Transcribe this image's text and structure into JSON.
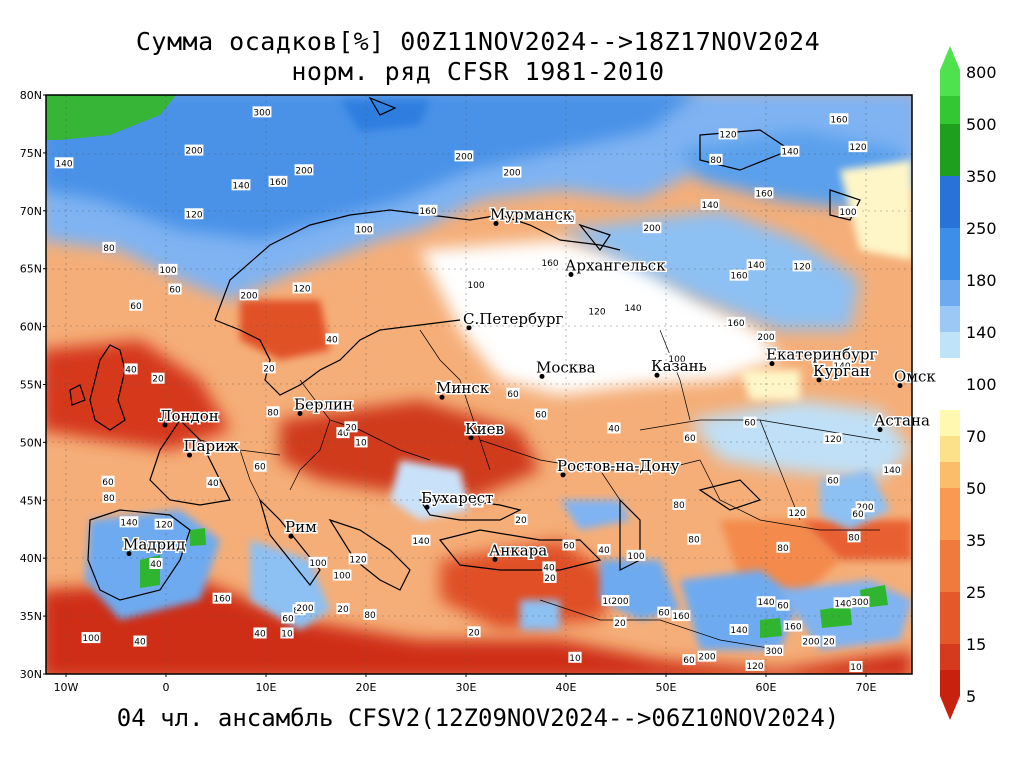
{
  "title_line1": "Сумма осадков[%] 00Z11NOV2024-->18Z17NOV2024",
  "title_line2": "норм. ряд CFSR 1981-2010",
  "footer": "04 чл. ансамбль CFSV2(12Z09NOV2024-->06Z10NOV2024)",
  "lat_labels": [
    "80N",
    "75N",
    "70N",
    "65N",
    "60N",
    "55N",
    "50N",
    "45N",
    "40N",
    "35N",
    "30N"
  ],
  "lon_labels": [
    "10W",
    "0",
    "10E",
    "20E",
    "30E",
    "40E",
    "50E",
    "60E",
    "70E"
  ],
  "colorbar": {
    "labels": [
      "800",
      "500",
      "350",
      "250",
      "180",
      "140",
      "100",
      "70",
      "50",
      "35",
      "25",
      "15",
      "5"
    ],
    "colors": [
      "#4fe24f",
      "#33c833",
      "#1ea01e",
      "#2873d8",
      "#3d8ee8",
      "#6eaaf0",
      "#9bc8f5",
      "#bfe3f7",
      "#fff8b0",
      "#fce08a",
      "#fcbd6a",
      "#f99a50",
      "#f07a3e",
      "#e4582a",
      "#d63a1e",
      "#c8220f"
    ]
  },
  "map": {
    "cities": [
      {
        "name": "Мурманск",
        "lon": 33,
        "lat": 68.9
      },
      {
        "name": "Архангельск",
        "lon": 40.5,
        "lat": 64.5
      },
      {
        "name": "С.Петербург",
        "lon": 30.3,
        "lat": 59.9
      },
      {
        "name": "Москва",
        "lon": 37.6,
        "lat": 55.7
      },
      {
        "name": "Казань",
        "lon": 49.1,
        "lat": 55.8
      },
      {
        "name": "Екатеринбург",
        "lon": 60.6,
        "lat": 56.8
      },
      {
        "name": "Курган",
        "lon": 65.3,
        "lat": 55.4
      },
      {
        "name": "Омск",
        "lon": 73.4,
        "lat": 54.9
      },
      {
        "name": "Астана",
        "lon": 71.4,
        "lat": 51.1
      },
      {
        "name": "Минск",
        "lon": 27.6,
        "lat": 53.9
      },
      {
        "name": "Киев",
        "lon": 30.5,
        "lat": 50.4
      },
      {
        "name": "Берлин",
        "lon": 13.4,
        "lat": 52.5
      },
      {
        "name": "Лондон",
        "lon": -0.1,
        "lat": 51.5
      },
      {
        "name": "Париж",
        "lon": 2.35,
        "lat": 48.9
      },
      {
        "name": "Ростов-на-Дону",
        "lon": 39.7,
        "lat": 47.2
      },
      {
        "name": "Бухарест",
        "lon": 26.1,
        "lat": 44.4
      },
      {
        "name": "Рим",
        "lon": 12.5,
        "lat": 41.9
      },
      {
        "name": "Мадрид",
        "lon": -3.7,
        "lat": 40.4
      },
      {
        "name": "Анкара",
        "lon": 32.9,
        "lat": 39.9
      }
    ],
    "contour_labels": [
      {
        "t": "300",
        "lon": 9.6,
        "lat": 78.5
      },
      {
        "t": "200",
        "lon": 2.8,
        "lat": 75.2
      },
      {
        "t": "200",
        "lon": 29.8,
        "lat": 74.7
      },
      {
        "t": "200",
        "lon": 34.6,
        "lat": 73.3
      },
      {
        "t": "140",
        "lon": -10.2,
        "lat": 74.1
      },
      {
        "t": "140",
        "lon": 7.5,
        "lat": 72.2
      },
      {
        "t": "160",
        "lon": 11.2,
        "lat": 72.5
      },
      {
        "t": "200",
        "lon": 13.8,
        "lat": 73.5
      },
      {
        "t": "120",
        "lon": 2.8,
        "lat": 69.7
      },
      {
        "t": "100",
        "lon": 0.2,
        "lat": 64.9
      },
      {
        "t": "80",
        "lon": -5.7,
        "lat": 66.8
      },
      {
        "t": "60",
        "lon": 0.9,
        "lat": 63.2
      },
      {
        "t": "60",
        "lon": -3,
        "lat": 61.8
      },
      {
        "t": "200",
        "lon": 8.3,
        "lat": 62.7
      },
      {
        "t": "120",
        "lon": 13.6,
        "lat": 63.3
      },
      {
        "t": "100",
        "lon": 19.8,
        "lat": 68.4
      },
      {
        "t": "160",
        "lon": 26.2,
        "lat": 70
      },
      {
        "t": "140",
        "lon": 40,
        "lat": 69.3
      },
      {
        "t": "160",
        "lon": 38.4,
        "lat": 65.5
      },
      {
        "t": "200",
        "lon": 48.6,
        "lat": 68.5
      },
      {
        "t": "100",
        "lon": 31,
        "lat": 63.6
      },
      {
        "t": "120",
        "lon": 43.1,
        "lat": 61.3
      },
      {
        "t": "140",
        "lon": 46.7,
        "lat": 61.6
      },
      {
        "t": "160",
        "lon": 57,
        "lat": 60.3
      },
      {
        "t": "140",
        "lon": 59,
        "lat": 65.3
      },
      {
        "t": "160",
        "lon": 57.3,
        "lat": 64.4
      },
      {
        "t": "120",
        "lon": 63.6,
        "lat": 65.2
      },
      {
        "t": "160",
        "lon": 59.8,
        "lat": 71.5
      },
      {
        "t": "140",
        "lon": 54.4,
        "lat": 70.5
      },
      {
        "t": "80",
        "lon": 55,
        "lat": 74.4
      },
      {
        "t": "120",
        "lon": 56.2,
        "lat": 76.6
      },
      {
        "t": "160",
        "lon": 67.3,
        "lat": 77.9
      },
      {
        "t": "120",
        "lon": 69.2,
        "lat": 75.5
      },
      {
        "t": "140",
        "lon": 62.4,
        "lat": 75.1
      },
      {
        "t": "100",
        "lon": 68.2,
        "lat": 69.9
      },
      {
        "t": "200",
        "lon": 60,
        "lat": 59.1
      },
      {
        "t": "100",
        "lon": 51.1,
        "lat": 57.2
      },
      {
        "t": "140",
        "lon": 67.6,
        "lat": 56.6
      },
      {
        "t": "40",
        "lon": 16.6,
        "lat": 58.9
      },
      {
        "t": "40",
        "lon": 27.8,
        "lat": 54.7
      },
      {
        "t": "60",
        "lon": 34.7,
        "lat": 54.2
      },
      {
        "t": "80",
        "lon": 17.7,
        "lat": 53.1
      },
      {
        "t": "60",
        "lon": 37.5,
        "lat": 52.4
      },
      {
        "t": "40",
        "lon": 44.8,
        "lat": 51.2
      },
      {
        "t": "60",
        "lon": 58.4,
        "lat": 51.7
      },
      {
        "t": "40",
        "lon": 17.7,
        "lat": 50.8
      },
      {
        "t": "20",
        "lon": 18.5,
        "lat": 51.3
      },
      {
        "t": "10",
        "lon": 19.5,
        "lat": 50
      },
      {
        "t": "20",
        "lon": 10.3,
        "lat": 56.4
      },
      {
        "t": "20",
        "lon": -0.8,
        "lat": 55.5
      },
      {
        "t": "40",
        "lon": -3.5,
        "lat": 56.3
      },
      {
        "t": "80",
        "lon": 10.7,
        "lat": 52.6
      },
      {
        "t": "60",
        "lon": 9.4,
        "lat": 47.9
      },
      {
        "t": "40",
        "lon": 4.7,
        "lat": 46.5
      },
      {
        "t": "60",
        "lon": -5.8,
        "lat": 46.6
      },
      {
        "t": "80",
        "lon": -5.7,
        "lat": 45.2
      },
      {
        "t": "140",
        "lon": -3.7,
        "lat": 43.1
      },
      {
        "t": "120",
        "lon": -0.2,
        "lat": 42.9
      },
      {
        "t": "40",
        "lon": -1,
        "lat": 39.5
      },
      {
        "t": "100",
        "lon": -7.5,
        "lat": 33.1
      },
      {
        "t": "40",
        "lon": -2.6,
        "lat": 32.8
      },
      {
        "t": "40",
        "lon": 9.4,
        "lat": 33.5
      },
      {
        "t": "80",
        "lon": 13.3,
        "lat": 35.5
      },
      {
        "t": "200",
        "lon": 13.9,
        "lat": 35.7
      },
      {
        "t": "20",
        "lon": 17.7,
        "lat": 35.6
      },
      {
        "t": "10",
        "lon": 12.1,
        "lat": 33.5
      },
      {
        "t": "60",
        "lon": 12.2,
        "lat": 34.8
      },
      {
        "t": "160",
        "lon": 5.6,
        "lat": 36.5
      },
      {
        "t": "100",
        "lon": 15.2,
        "lat": 39.6
      },
      {
        "t": "100",
        "lon": 17.6,
        "lat": 38.5
      },
      {
        "t": "120",
        "lon": 19.2,
        "lat": 39.9
      },
      {
        "t": "80",
        "lon": 20.4,
        "lat": 35.1
      },
      {
        "t": "140",
        "lon": 25.5,
        "lat": 41.5
      },
      {
        "t": "20",
        "lon": 30.8,
        "lat": 33.6
      },
      {
        "t": "60",
        "lon": 31.1,
        "lat": 44.8
      },
      {
        "t": "20",
        "lon": 35.5,
        "lat": 43.3
      },
      {
        "t": "60",
        "lon": 40.3,
        "lat": 41.1
      },
      {
        "t": "40",
        "lon": 38.3,
        "lat": 39.2
      },
      {
        "t": "20",
        "lon": 38.4,
        "lat": 38.3
      },
      {
        "t": "100",
        "lon": 44.5,
        "lat": 36.3
      },
      {
        "t": "200",
        "lon": 45.4,
        "lat": 36.3
      },
      {
        "t": "20",
        "lon": 45.4,
        "lat": 34.4
      },
      {
        "t": "100",
        "lon": 47,
        "lat": 40.2
      },
      {
        "t": "40",
        "lon": 43.8,
        "lat": 40.7
      },
      {
        "t": "60",
        "lon": 49.8,
        "lat": 35.3
      },
      {
        "t": "160",
        "lon": 51.5,
        "lat": 35
      },
      {
        "t": "80",
        "lon": 51.3,
        "lat": 44.6
      },
      {
        "t": "60",
        "lon": 52.4,
        "lat": 50.4
      },
      {
        "t": "80",
        "lon": 52.8,
        "lat": 41.6
      },
      {
        "t": "60",
        "lon": 52.3,
        "lat": 31.2
      },
      {
        "t": "200",
        "lon": 54.1,
        "lat": 31.5
      },
      {
        "t": "140",
        "lon": 57.3,
        "lat": 33.8
      },
      {
        "t": "140",
        "lon": 60,
        "lat": 36.2
      },
      {
        "t": "80",
        "lon": 61.7,
        "lat": 40.9
      },
      {
        "t": "60",
        "lon": 61.7,
        "lat": 35.9
      },
      {
        "t": "160",
        "lon": 62.7,
        "lat": 34.1
      },
      {
        "t": "120",
        "lon": 58.9,
        "lat": 30.7
      },
      {
        "t": "300",
        "lon": 60.8,
        "lat": 32
      },
      {
        "t": "200",
        "lon": 64.5,
        "lat": 32.8
      },
      {
        "t": "20",
        "lon": 66.3,
        "lat": 32.8
      },
      {
        "t": "140",
        "lon": 67.7,
        "lat": 36.1
      },
      {
        "t": "300",
        "lon": 69.4,
        "lat": 36.2
      },
      {
        "t": "10",
        "lon": 69,
        "lat": 30.6
      },
      {
        "t": "200",
        "lon": 69.9,
        "lat": 44.4
      },
      {
        "t": "120",
        "lon": 63.1,
        "lat": 43.9
      },
      {
        "t": "80",
        "lon": 68.8,
        "lat": 41.8
      },
      {
        "t": "60",
        "lon": 69.2,
        "lat": 43.8
      },
      {
        "t": "60",
        "lon": 66.7,
        "lat": 46.7
      },
      {
        "t": "120",
        "lon": 66.7,
        "lat": 50.3
      },
      {
        "t": "140",
        "lon": 72.6,
        "lat": 47.6
      },
      {
        "t": "10",
        "lon": 40.9,
        "lat": 31.4
      }
    ]
  }
}
